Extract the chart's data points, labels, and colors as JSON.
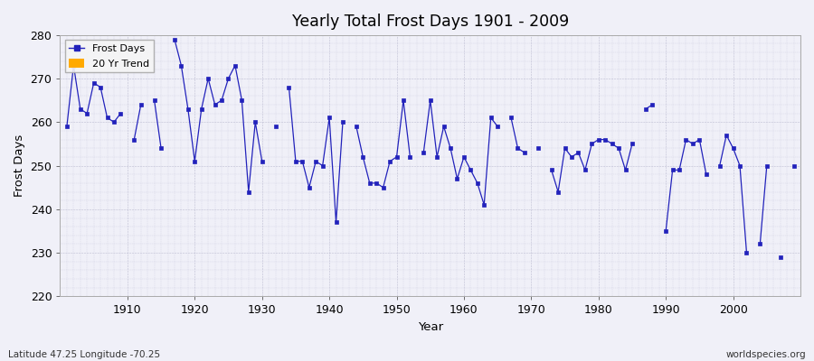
{
  "title": "Yearly Total Frost Days 1901 - 2009",
  "xlabel": "Year",
  "ylabel": "Frost Days",
  "subtitle_left": "Latitude 47.25 Longitude -70.25",
  "subtitle_right": "worldspecies.org",
  "legend_entries": [
    "Frost Days",
    "20 Yr Trend"
  ],
  "legend_colors": [
    "#2222bb",
    "#ffaa00"
  ],
  "line_color": "#2222bb",
  "marker_color": "#2222bb",
  "bg_color": "#f0f0f8",
  "ylim": [
    220,
    280
  ],
  "xlim": [
    1900,
    2010
  ],
  "years": [
    1901,
    1902,
    1903,
    1904,
    1905,
    1906,
    1907,
    1908,
    1909,
    1911,
    1912,
    1914,
    1915,
    1917,
    1918,
    1919,
    1920,
    1921,
    1922,
    1923,
    1924,
    1925,
    1926,
    1927,
    1928,
    1929,
    1930,
    1932,
    1934,
    1935,
    1936,
    1937,
    1938,
    1939,
    1940,
    1941,
    1942,
    1944,
    1945,
    1946,
    1947,
    1948,
    1949,
    1950,
    1951,
    1952,
    1954,
    1955,
    1956,
    1957,
    1958,
    1959,
    1960,
    1961,
    1962,
    1963,
    1964,
    1965,
    1967,
    1968,
    1969,
    1971,
    1973,
    1974,
    1975,
    1976,
    1977,
    1978,
    1979,
    1980,
    1981,
    1982,
    1983,
    1984,
    1985,
    1987,
    1988,
    1990,
    1991,
    1992,
    1993,
    1994,
    1995,
    1996,
    1998,
    1999,
    2000,
    2001,
    2002,
    2004,
    2005,
    2007,
    2009
  ],
  "values_raw": {
    "1901": 259,
    "1902": 273,
    "1903": 263,
    "1904": 262,
    "1905": 269,
    "1906": 268,
    "1907": 261,
    "1908": 260,
    "1909": 262,
    "1910": null,
    "1911": 256,
    "1912": 264,
    "1913": null,
    "1914": 265,
    "1915": 254,
    "1916": null,
    "1917": 279,
    "1918": 273,
    "1919": 263,
    "1920": 251,
    "1921": 263,
    "1922": 270,
    "1923": 264,
    "1924": 265,
    "1925": 270,
    "1926": 273,
    "1927": 265,
    "1928": 244,
    "1929": 260,
    "1930": 251,
    "1931": null,
    "1932": 259,
    "1933": null,
    "1934": 268,
    "1935": 251,
    "1936": 251,
    "1937": 245,
    "1938": 251,
    "1939": 250,
    "1940": 261,
    "1941": 237,
    "1942": 260,
    "1943": null,
    "1944": 259,
    "1945": 252,
    "1946": 246,
    "1947": 246,
    "1948": 245,
    "1949": 251,
    "1950": 252,
    "1951": 265,
    "1952": 252,
    "1953": null,
    "1954": 253,
    "1955": 265,
    "1956": 252,
    "1957": 259,
    "1958": 254,
    "1959": 247,
    "1960": 252,
    "1961": 249,
    "1962": 246,
    "1963": 241,
    "1964": 261,
    "1965": 259,
    "1966": null,
    "1967": 261,
    "1968": 254,
    "1969": 253,
    "1970": null,
    "1971": 254,
    "1972": null,
    "1973": 249,
    "1974": 244,
    "1975": 254,
    "1976": 252,
    "1977": 253,
    "1978": 249,
    "1979": 255,
    "1980": 256,
    "1981": 256,
    "1982": 255,
    "1983": 254,
    "1984": 249,
    "1985": 255,
    "1986": null,
    "1987": 263,
    "1988": 264,
    "1989": null,
    "1990": 235,
    "1991": 249,
    "1992": 249,
    "1993": 256,
    "1994": 255,
    "1995": 256,
    "1996": 248,
    "1997": null,
    "1998": 250,
    "1999": 257,
    "2000": 254,
    "2001": 250,
    "2002": 230,
    "2003": null,
    "2004": 232,
    "2005": 250,
    "2006": null,
    "2007": 229,
    "2008": null,
    "2009": 250
  },
  "all_years": [
    1901,
    1902,
    1903,
    1904,
    1905,
    1906,
    1907,
    1908,
    1909,
    1910,
    1911,
    1912,
    1913,
    1914,
    1915,
    1916,
    1917,
    1918,
    1919,
    1920,
    1921,
    1922,
    1923,
    1924,
    1925,
    1926,
    1927,
    1928,
    1929,
    1930,
    1931,
    1932,
    1933,
    1934,
    1935,
    1936,
    1937,
    1938,
    1939,
    1940,
    1941,
    1942,
    1943,
    1944,
    1945,
    1946,
    1947,
    1948,
    1949,
    1950,
    1951,
    1952,
    1953,
    1954,
    1955,
    1956,
    1957,
    1958,
    1959,
    1960,
    1961,
    1962,
    1963,
    1964,
    1965,
    1966,
    1967,
    1968,
    1969,
    1970,
    1971,
    1972,
    1973,
    1974,
    1975,
    1976,
    1977,
    1978,
    1979,
    1980,
    1981,
    1982,
    1983,
    1984,
    1985,
    1986,
    1987,
    1988,
    1989,
    1990,
    1991,
    1992,
    1993,
    1994,
    1995,
    1996,
    1997,
    1998,
    1999,
    2000,
    2001,
    2002,
    2003,
    2004,
    2005,
    2006,
    2007,
    2008,
    2009
  ]
}
